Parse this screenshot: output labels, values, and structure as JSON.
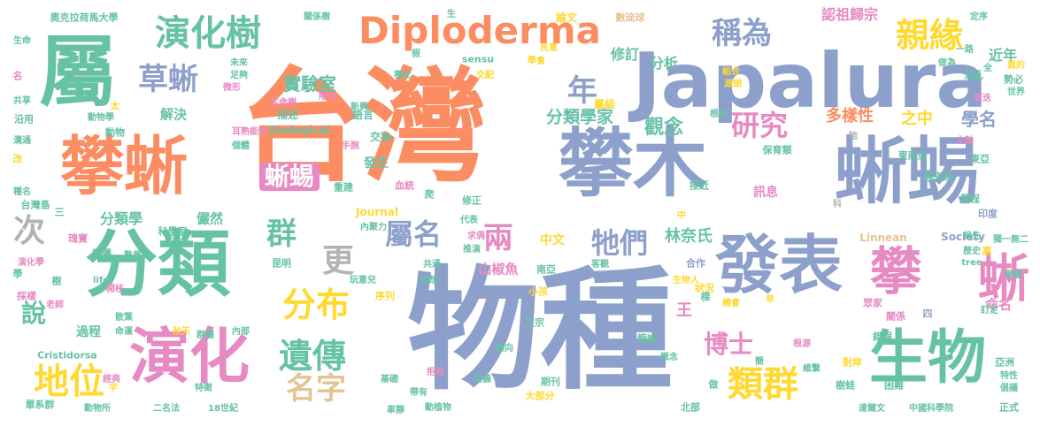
{
  "palette": {
    "green": "#66c2a5",
    "orange": "#fc8d62",
    "blue": "#8da0cb",
    "pink": "#e78ac3",
    "lime": "#a6d854",
    "yellow": "#ffd92f",
    "tan": "#e5c494",
    "gray": "#b3b3b3"
  },
  "words": [
    {
      "text": "物種",
      "weight": 100,
      "color": "blue"
    },
    {
      "text": "台灣",
      "weight": 96,
      "color": "orange"
    },
    {
      "text": "Japalura",
      "weight": 80,
      "color": "blue"
    },
    {
      "text": "攀木",
      "weight": 75,
      "color": "blue"
    },
    {
      "text": "蜥蜴",
      "weight": 70,
      "color": "blue"
    },
    {
      "text": "屬",
      "weight": 68,
      "color": "green"
    },
    {
      "text": "分類",
      "weight": 64,
      "color": "green"
    },
    {
      "text": "攀蜥",
      "weight": 60,
      "color": "orange"
    },
    {
      "text": "發表",
      "weight": 55,
      "color": "blue"
    },
    {
      "text": "演化",
      "weight": 52,
      "color": "pink"
    },
    {
      "text": "生物",
      "weight": 50,
      "color": "green"
    },
    {
      "text": "攀",
      "weight": 45,
      "color": "pink"
    },
    {
      "text": "蜥",
      "weight": 44,
      "color": "pink"
    },
    {
      "text": "Diploderma",
      "weight": 40,
      "color": "orange"
    },
    {
      "text": "演化樹",
      "weight": 36,
      "color": "green"
    },
    {
      "text": "親緣",
      "weight": 34,
      "color": "yellow"
    },
    {
      "text": "地位",
      "weight": 34,
      "color": "yellow"
    },
    {
      "text": "分布",
      "weight": 33,
      "color": "yellow"
    },
    {
      "text": "遺傳",
      "weight": 32,
      "color": "green"
    },
    {
      "text": "類群",
      "weight": 32,
      "color": "yellow"
    },
    {
      "text": "草蜥",
      "weight": 30,
      "color": "blue"
    },
    {
      "text": "稱為",
      "weight": 28,
      "color": "blue"
    },
    {
      "text": "名字",
      "weight": 28,
      "color": "tan"
    },
    {
      "text": "屬名",
      "weight": 28,
      "color": "blue"
    },
    {
      "text": "兩",
      "weight": 28,
      "color": "pink"
    },
    {
      "text": "研究",
      "weight": 27,
      "color": "pink"
    },
    {
      "text": "牠們",
      "weight": 26,
      "color": "blue"
    },
    {
      "text": "年",
      "weight": 26,
      "color": "blue"
    },
    {
      "text": "群",
      "weight": 26,
      "color": "green"
    },
    {
      "text": "更",
      "weight": 26,
      "color": "gray"
    },
    {
      "text": "次",
      "weight": 26,
      "color": "gray"
    },
    {
      "text": "說",
      "weight": 25,
      "color": "green"
    },
    {
      "text": "蜥蜴",
      "weight": 25,
      "color": "pink",
      "boxed": true
    },
    {
      "text": "博士",
      "weight": 24,
      "color": "pink"
    },
    {
      "text": "觀念",
      "weight": 20,
      "color": "green"
    },
    {
      "text": "實驗室",
      "weight": 18,
      "color": "green"
    },
    {
      "text": "學名",
      "weight": 18,
      "color": "blue"
    },
    {
      "text": "分類學家",
      "weight": 17,
      "color": "green"
    },
    {
      "text": "林奈氏",
      "weight": 17,
      "color": "green"
    },
    {
      "text": "多樣性",
      "weight": 16,
      "color": "orange"
    },
    {
      "text": "之中",
      "weight": 16,
      "color": "yellow"
    },
    {
      "text": "分析",
      "weight": 15,
      "color": "green"
    },
    {
      "text": "修訂",
      "weight": 15,
      "color": "green"
    },
    {
      "text": "近年",
      "weight": 15,
      "color": "green"
    },
    {
      "text": "認祖歸宗",
      "weight": 15,
      "color": "pink"
    },
    {
      "text": "分類學",
      "weight": 15,
      "color": "green"
    },
    {
      "text": "解決",
      "weight": 14,
      "color": "green"
    },
    {
      "text": "儼然",
      "weight": 14,
      "color": "green"
    },
    {
      "text": "命名",
      "weight": 14,
      "color": "pink"
    },
    {
      "text": "山椒魚",
      "weight": 14,
      "color": "pink"
    },
    {
      "text": "王",
      "weight": 14,
      "color": "pink"
    },
    {
      "text": "中文",
      "weight": 13,
      "color": "yellow"
    },
    {
      "text": "過程",
      "weight": 13,
      "color": "green"
    },
    {
      "text": "發生",
      "weight": 13,
      "color": "green"
    },
    {
      "text": "訊息",
      "weight": 13,
      "color": "pink"
    },
    {
      "text": "論文",
      "weight": 12,
      "color": "yellow"
    },
    {
      "text": "屬級",
      "weight": 12,
      "color": "yellow"
    },
    {
      "text": "語言",
      "weight": 12,
      "color": "green"
    },
    {
      "text": "描述",
      "weight": 12,
      "color": "green"
    },
    {
      "text": "交換",
      "weight": 12,
      "color": "green"
    },
    {
      "text": "Zoological",
      "weight": 12,
      "color": "green"
    },
    {
      "text": "Linnean",
      "weight": 12,
      "color": "tan"
    },
    {
      "text": "Society",
      "weight": 12,
      "color": "blue"
    },
    {
      "text": "Journal",
      "weight": 12,
      "color": "yellow"
    },
    {
      "text": "sensu",
      "weight": 11,
      "color": "green"
    },
    {
      "text": "Cristidorsa",
      "weight": 11,
      "color": "green"
    },
    {
      "text": "數琉球",
      "weight": 11,
      "color": "tan"
    },
    {
      "text": "奧克拉荷馬大學",
      "weight": 11,
      "color": "green"
    },
    {
      "text": "混亂",
      "weight": 11,
      "color": "green"
    },
    {
      "text": "勢必",
      "weight": 11,
      "color": "green"
    },
    {
      "text": "保育類",
      "weight": 11,
      "color": "green"
    },
    {
      "text": "東南亞",
      "weight": 11,
      "color": "green"
    },
    {
      "text": "東亞",
      "weight": 11,
      "color": "green"
    },
    {
      "text": "越來越",
      "weight": 11,
      "color": "green"
    },
    {
      "text": "歷程",
      "weight": 11,
      "color": "green"
    },
    {
      "text": "印度",
      "weight": 11,
      "color": "blue"
    },
    {
      "text": "接近",
      "weight": 11,
      "color": "green"
    },
    {
      "text": "修正",
      "weight": 11,
      "color": "green"
    },
    {
      "text": "重建",
      "weight": 11,
      "color": "green"
    },
    {
      "text": "血統",
      "weight": 11,
      "color": "pink"
    },
    {
      "text": "科學家",
      "weight": 11,
      "color": "green"
    },
    {
      "text": "播遷",
      "weight": 11,
      "color": "green"
    },
    {
      "text": "昆明",
      "weight": 11,
      "color": "green"
    },
    {
      "text": "序列",
      "weight": 11,
      "color": "yellow"
    },
    {
      "text": "南亞",
      "weight": 11,
      "color": "green"
    },
    {
      "text": "合作",
      "weight": 11,
      "color": "blue"
    },
    {
      "text": "狀況",
      "weight": 11,
      "color": "yellow"
    },
    {
      "text": "小孩",
      "weight": 11,
      "color": "yellow"
    },
    {
      "text": "正宗",
      "weight": 11,
      "color": "green"
    },
    {
      "text": "龍蜥",
      "weight": 11,
      "color": "green"
    },
    {
      "text": "錯誤",
      "weight": 11,
      "color": "green"
    },
    {
      "text": "關係",
      "weight": 11,
      "color": "pink"
    },
    {
      "text": "眾家",
      "weight": 11,
      "color": "pink"
    },
    {
      "text": "對岸",
      "weight": 11,
      "color": "yellow"
    },
    {
      "text": "亞洲",
      "weight": 11,
      "color": "green"
    },
    {
      "text": "樹蛙",
      "weight": 11,
      "color": "green"
    },
    {
      "text": "困難",
      "weight": 11,
      "color": "green"
    },
    {
      "text": "期刊",
      "weight": 11,
      "color": "green"
    },
    {
      "text": "大部分",
      "weight": 11,
      "color": "yellow"
    },
    {
      "text": "北部",
      "weight": 11,
      "color": "green"
    },
    {
      "text": "正式",
      "weight": 11,
      "color": "green"
    },
    {
      "text": "概念",
      "weight": 10,
      "color": "green"
    },
    {
      "text": "瑰寶",
      "weight": 11,
      "color": "pink"
    },
    {
      "text": "台灣島",
      "weight": 11,
      "color": "green"
    },
    {
      "text": "單系群",
      "weight": 11,
      "color": "green"
    },
    {
      "text": "採樣",
      "weight": 11,
      "color": "pink"
    },
    {
      "text": "沿用",
      "weight": 11,
      "color": "green"
    },
    {
      "text": "動物",
      "weight": 11,
      "color": "green"
    },
    {
      "text": "改",
      "weight": 11,
      "color": "yellow"
    },
    {
      "text": "名",
      "weight": 11,
      "color": "pink"
    },
    {
      "text": "樹",
      "weight": 11,
      "color": "green"
    },
    {
      "text": "學",
      "weight": 11,
      "color": "green"
    },
    {
      "text": "太",
      "weight": 11,
      "color": "yellow"
    },
    {
      "text": "做",
      "weight": 11,
      "color": "green"
    },
    {
      "text": "四",
      "weight": 11,
      "color": "blue"
    },
    {
      "text": "高",
      "weight": 11,
      "color": "yellow"
    },
    {
      "text": "棵",
      "weight": 11,
      "color": "green"
    },
    {
      "text": "三",
      "weight": 11,
      "color": "green"
    },
    {
      "text": "爬",
      "weight": 11,
      "color": "green"
    },
    {
      "text": "牠",
      "weight": 10,
      "color": "gray"
    },
    {
      "text": "未來",
      "weight": 10,
      "color": "green"
    },
    {
      "text": "假",
      "weight": 10,
      "color": "green"
    },
    {
      "text": "生",
      "weight": 10,
      "color": "green"
    },
    {
      "text": "種化",
      "weight": 10,
      "color": "green"
    },
    {
      "text": "學會",
      "weight": 10,
      "color": "yellow"
    },
    {
      "text": "定序",
      "weight": 10,
      "color": "green"
    },
    {
      "text": "關係樹",
      "weight": 10,
      "color": "green"
    },
    {
      "text": "足夠",
      "weight": 10,
      "color": "green"
    },
    {
      "text": "耳熟能詳",
      "weight": 10,
      "color": "pink"
    },
    {
      "text": "做為",
      "weight": 10,
      "color": "green"
    },
    {
      "text": "一路",
      "weight": 10,
      "color": "green"
    },
    {
      "text": "共享",
      "weight": 10,
      "color": "green"
    },
    {
      "text": "生命",
      "weight": 10,
      "color": "green"
    },
    {
      "text": "溝通",
      "weight": 10,
      "color": "green"
    },
    {
      "text": "種名",
      "weight": 10,
      "color": "green"
    },
    {
      "text": "世界",
      "weight": 10,
      "color": "green"
    },
    {
      "text": "獨一無二",
      "weight": 10,
      "color": "green"
    },
    {
      "text": "經典",
      "weight": 10,
      "color": "pink"
    },
    {
      "text": "18世紀",
      "weight": 10,
      "color": "green"
    },
    {
      "text": "二名法",
      "weight": 10,
      "color": "green"
    },
    {
      "text": "中國科學院",
      "weight": 10,
      "color": "green"
    },
    {
      "text": "達爾文",
      "weight": 10,
      "color": "green"
    },
    {
      "text": "動物所",
      "weight": 10,
      "color": "green"
    },
    {
      "text": "車靜",
      "weight": 10,
      "color": "green"
    },
    {
      "text": "動植物",
      "weight": 10,
      "color": "green"
    },
    {
      "text": "帶有",
      "weight": 10,
      "color": "green"
    },
    {
      "text": "基礎",
      "weight": 10,
      "color": "green"
    },
    {
      "text": "拒絕",
      "weight": 10,
      "color": "pink"
    },
    {
      "text": "定義",
      "weight": 10,
      "color": "green"
    },
    {
      "text": "傾向",
      "weight": 10,
      "color": "green"
    },
    {
      "text": "根源",
      "weight": 10,
      "color": "pink"
    },
    {
      "text": "維繫",
      "weight": 10,
      "color": "green"
    },
    {
      "text": "特性",
      "weight": 10,
      "color": "green"
    },
    {
      "text": "倡議",
      "weight": 10,
      "color": "green"
    },
    {
      "text": "生物人",
      "weight": 10,
      "color": "yellow"
    },
    {
      "text": "理想",
      "weight": 10,
      "color": "green"
    },
    {
      "text": "玩意兒",
      "weight": 10,
      "color": "green"
    },
    {
      "text": "共通",
      "weight": 10,
      "color": "green"
    },
    {
      "text": "推演",
      "weight": 10,
      "color": "green"
    },
    {
      "text": "求偶",
      "weight": 10,
      "color": "pink"
    },
    {
      "text": "代表",
      "weight": 10,
      "color": "green"
    },
    {
      "text": "內聚力",
      "weight": 10,
      "color": "green"
    },
    {
      "text": "客觀",
      "weight": 10,
      "color": "green"
    },
    {
      "text": "演化學",
      "weight": 10,
      "color": "pink"
    },
    {
      "text": "熟悉",
      "weight": 10,
      "color": "green"
    },
    {
      "text": "老師",
      "weight": 10,
      "color": "pink"
    },
    {
      "text": "開枝",
      "weight": 10,
      "color": "pink"
    },
    {
      "text": "散葉",
      "weight": 10,
      "color": "green"
    },
    {
      "text": "命運",
      "weight": 10,
      "color": "green"
    },
    {
      "text": "秋天",
      "weight": 10,
      "color": "yellow"
    },
    {
      "text": "群體",
      "weight": 10,
      "color": "green"
    },
    {
      "text": "內部",
      "weight": 10,
      "color": "green"
    },
    {
      "text": "特徵",
      "weight": 10,
      "color": "green"
    },
    {
      "text": "個體",
      "weight": 10,
      "color": "green"
    },
    {
      "text": "手腕",
      "weight": 10,
      "color": "pink"
    },
    {
      "text": "新興",
      "weight": 10,
      "color": "green"
    },
    {
      "text": "生命樹",
      "weight": 10,
      "color": "pink"
    },
    {
      "text": "階元",
      "weight": 10,
      "color": "pink"
    },
    {
      "text": "微形",
      "weight": 10,
      "color": "pink"
    },
    {
      "text": "交配",
      "weight": 10,
      "color": "yellow"
    },
    {
      "text": "動物學",
      "weight": 10,
      "color": "green"
    },
    {
      "text": "民意",
      "weight": 10,
      "color": "yellow"
    },
    {
      "text": "組合",
      "weight": 10,
      "color": "yellow"
    },
    {
      "text": "源頭",
      "weight": 10,
      "color": "yellow"
    },
    {
      "text": "根部",
      "weight": 10,
      "color": "green"
    },
    {
      "text": "更迭",
      "weight": 10,
      "color": "pink"
    },
    {
      "text": "全",
      "weight": 10,
      "color": "green"
    },
    {
      "text": "異的",
      "weight": 10,
      "color": "yellow"
    },
    {
      "text": "主軸",
      "weight": 10,
      "color": "pink"
    },
    {
      "text": "組先",
      "weight": 10,
      "color": "green"
    },
    {
      "text": "歷史",
      "weight": 10,
      "color": "green"
    },
    {
      "text": "tree",
      "weight": 10,
      "color": "green"
    },
    {
      "text": "階層",
      "weight": 10,
      "color": "green"
    },
    {
      "text": "life",
      "weight": 10,
      "color": "green"
    },
    {
      "text": "訂定",
      "weight": 10,
      "color": "green"
    },
    {
      "text": "機會",
      "weight": 10,
      "color": "yellow"
    },
    {
      "text": "早",
      "weight": 10,
      "color": "yellow"
    },
    {
      "text": "宇",
      "weight": 10,
      "color": "yellow"
    },
    {
      "text": "中",
      "weight": 10,
      "color": "yellow"
    },
    {
      "text": "簡",
      "weight": 10,
      "color": "green"
    },
    {
      "text": "科",
      "weight": 10,
      "color": "gray"
    }
  ]
}
